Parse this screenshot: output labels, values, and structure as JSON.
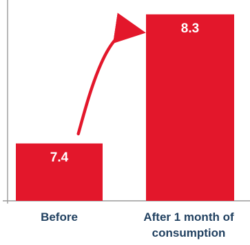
{
  "chart_data": {
    "type": "bar",
    "categories": [
      "Before",
      "After 1 month of consumption"
    ],
    "category_lines": [
      [
        "Before"
      ],
      [
        "After 1 month of",
        "consumption"
      ]
    ],
    "values": [
      7.4,
      8.3
    ],
    "value_labels": [
      "7.4",
      "8.3"
    ],
    "title": "",
    "xlabel": "",
    "ylabel": "",
    "ylim": [
      7.0,
      8.4
    ],
    "grid": false,
    "legend": "none",
    "annotation": "curved arrow from Before bar to After bar",
    "colors": {
      "bar": "#e3172b",
      "arrow": "#e3172b",
      "axis": "#9a9a9a",
      "category_label": "#1f3f5f",
      "value_label": "#ffffff"
    }
  }
}
